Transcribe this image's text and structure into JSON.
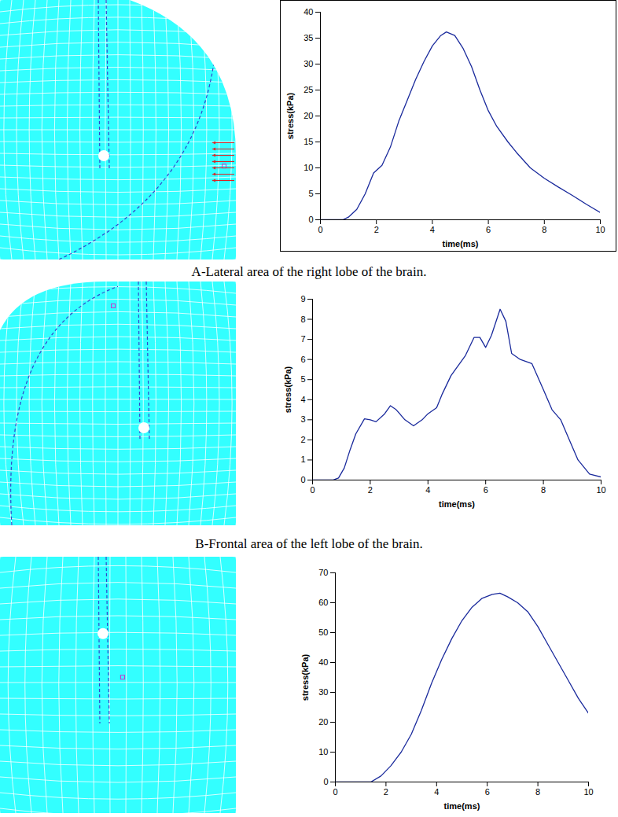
{
  "chart_data": [
    {
      "type": "line",
      "caption": "A-Lateral area of the right lobe of the brain.",
      "xlabel": "time(ms)",
      "ylabel": "stress(kPa)",
      "color": "#1a2a9c",
      "x": [
        0,
        0.8,
        1,
        1.3,
        1.6,
        1.9,
        2.2,
        2.5,
        2.8,
        3.1,
        3.4,
        3.7,
        4.0,
        4.3,
        4.5,
        4.8,
        5.1,
        5.4,
        5.7,
        6.0,
        6.3,
        6.7,
        7.0,
        7.5,
        8.0,
        8.5,
        9.0,
        9.5,
        10
      ],
      "values": [
        0,
        0,
        0.5,
        2,
        5,
        9,
        10.5,
        14,
        19,
        23,
        27,
        30.5,
        33.5,
        35.5,
        36.2,
        35.5,
        33,
        29.5,
        25,
        21,
        18,
        15,
        13,
        10,
        8,
        6.3,
        4.7,
        3,
        1.4
      ],
      "xlim": [
        0,
        10
      ],
      "xticks": [
        0,
        2,
        4,
        6,
        8,
        10
      ],
      "ylim": [
        0,
        40
      ],
      "yticks": [
        0,
        5,
        10,
        15,
        20,
        25,
        30,
        35,
        40
      ]
    },
    {
      "type": "line",
      "caption": "B-Frontal area of the left lobe of the brain.",
      "xlabel": "time(ms)",
      "ylabel": "stress(kPa)",
      "color": "#1a2a9c",
      "x": [
        0,
        0.7,
        0.9,
        1.1,
        1.3,
        1.5,
        1.8,
        2.0,
        2.2,
        2.5,
        2.7,
        2.9,
        3.2,
        3.5,
        3.8,
        4.0,
        4.3,
        4.5,
        4.8,
        5.0,
        5.3,
        5.6,
        5.8,
        6.0,
        6.2,
        6.5,
        6.7,
        6.9,
        7.2,
        7.6,
        8.0,
        8.3,
        8.6,
        8.9,
        9.2,
        9.6,
        10
      ],
      "values": [
        0,
        0,
        0.1,
        0.6,
        1.5,
        2.3,
        3.05,
        3.0,
        2.9,
        3.3,
        3.7,
        3.5,
        3.0,
        2.7,
        3.0,
        3.3,
        3.6,
        4.3,
        5.2,
        5.6,
        6.2,
        7.1,
        7.1,
        6.6,
        7.2,
        8.5,
        7.9,
        6.3,
        6.0,
        5.8,
        4.5,
        3.5,
        3.0,
        2.0,
        1.0,
        0.3,
        0.15
      ],
      "xlim": [
        0,
        10
      ],
      "xticks": [
        0,
        2,
        4,
        6,
        8,
        10
      ],
      "ylim": [
        0,
        9
      ],
      "yticks": [
        0,
        1,
        2,
        3,
        4,
        5,
        6,
        7,
        8,
        9
      ]
    },
    {
      "type": "line",
      "xlabel": "time(ms)",
      "ylabel": "stress(kPa)",
      "color": "#1a2a9c",
      "x": [
        0,
        1.4,
        1.8,
        2.2,
        2.6,
        3.0,
        3.4,
        3.8,
        4.2,
        4.6,
        5.0,
        5.4,
        5.8,
        6.2,
        6.5,
        6.8,
        7.2,
        7.6,
        8.0,
        8.4,
        8.8,
        9.2,
        9.6,
        10
      ],
      "values": [
        0,
        0,
        2,
        5.5,
        10,
        16,
        24,
        33,
        41,
        48,
        54,
        58.5,
        61.5,
        62.8,
        63.2,
        62,
        60,
        57,
        52,
        46,
        40,
        34,
        28,
        23
      ],
      "xlim": [
        0,
        10
      ],
      "xticks": [
        0,
        2,
        4,
        6,
        8,
        10
      ],
      "ylim": [
        0,
        70
      ],
      "yticks": [
        0,
        10,
        20,
        30,
        40,
        50,
        60,
        70
      ]
    }
  ]
}
